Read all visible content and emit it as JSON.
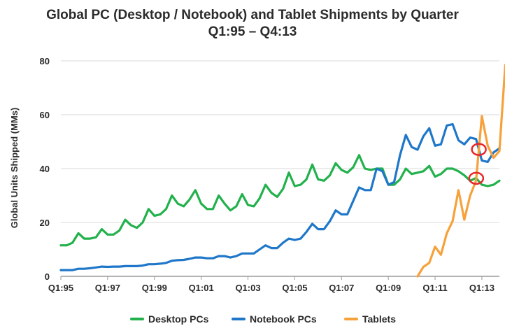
{
  "chart_data": {
    "type": "line",
    "title": "Global PC (Desktop / Notebook) and Tablet Shipments by Quarter",
    "subtitle": "Q1:95 – Q4:13",
    "ylabel": "Global Units Shipped (MMs)",
    "xlabel": "",
    "ylim": [
      0,
      80
    ],
    "yticks": [
      0,
      20,
      40,
      60,
      80
    ],
    "grid": true,
    "legend": "bottom",
    "x_tick_labels": [
      "Q1:95",
      "Q1:97",
      "Q1:99",
      "Q1:01",
      "Q1:03",
      "Q1:05",
      "Q1:07",
      "Q1:09",
      "Q1:11",
      "Q1:13"
    ],
    "series": [
      {
        "name": "Desktop PCs",
        "color": "#22b14c",
        "start": "Q1:95",
        "values": [
          11.5,
          11.5,
          12.5,
          16,
          14,
          14,
          14.5,
          17.5,
          15.5,
          15.5,
          17,
          21,
          19,
          18,
          20,
          25,
          22.5,
          23,
          25,
          30,
          27,
          26,
          28.5,
          32,
          27,
          25,
          25,
          30,
          27,
          24.5,
          26,
          30.5,
          26.5,
          26,
          29,
          34,
          31,
          29.5,
          32.5,
          38.5,
          33.5,
          34,
          36,
          41.5,
          36,
          35.5,
          37.5,
          42,
          39.5,
          38.5,
          40.5,
          45,
          40,
          39.5,
          40,
          40,
          34,
          34,
          36,
          40,
          38,
          38.5,
          39,
          41,
          37,
          38,
          40,
          40,
          39,
          37.5,
          35.5,
          36.5,
          34,
          33.5,
          34,
          35.5
        ]
      },
      {
        "name": "Notebook PCs",
        "color": "#1f77c9",
        "start": "Q1:95",
        "values": [
          2.3,
          2.3,
          2.3,
          2.8,
          2.8,
          3,
          3.3,
          3.6,
          3.5,
          3.6,
          3.6,
          3.8,
          3.8,
          3.8,
          4,
          4.5,
          4.5,
          4.7,
          5,
          5.8,
          6,
          6.1,
          6.5,
          7,
          7,
          6.7,
          6.7,
          7.5,
          7.5,
          7,
          7.5,
          8.5,
          8.5,
          8.5,
          10,
          11.5,
          10.5,
          10.5,
          12.5,
          14,
          13.5,
          14,
          16.5,
          19.5,
          17.5,
          17.5,
          20.5,
          24.5,
          23,
          23,
          28,
          33,
          32,
          32,
          40,
          39,
          34,
          35,
          45,
          52.5,
          48,
          47,
          52,
          55,
          48.5,
          49,
          56,
          56.5,
          50.5,
          49,
          51.5,
          51,
          43,
          42.5,
          46,
          47.5
        ]
      },
      {
        "name": "Tablets",
        "color": "#f7a13b",
        "start": "Q2:10",
        "values": [
          0,
          3.5,
          5,
          11,
          8,
          16,
          20.5,
          32,
          21,
          30,
          35.5,
          59.5,
          48.5,
          44,
          46.5,
          78.5
        ]
      }
    ],
    "annotations": [
      "crossover-circle-tablets-vs-notebook",
      "crossover-circle-tablets-vs-desktop"
    ],
    "annotation_color": "#e8262b"
  }
}
